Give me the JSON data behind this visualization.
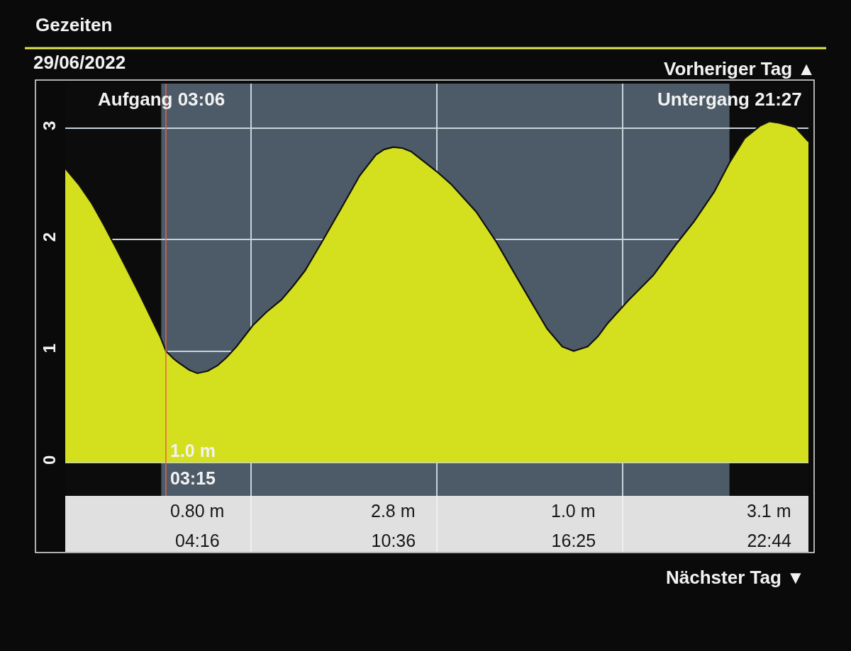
{
  "chart_data": {
    "type": "area",
    "title": "Gezeiten",
    "subtitle": "29/06/2022",
    "x": [
      0,
      0.45,
      0.87,
      1.25,
      1.63,
      2.0,
      2.4,
      2.75,
      3.08,
      3.25,
      3.5,
      3.69,
      4.0,
      4.267,
      4.6,
      4.92,
      5.2,
      5.53,
      6.06,
      6.5,
      6.98,
      7.35,
      7.74,
      8.27,
      8.89,
      9.5,
      10.03,
      10.3,
      10.6,
      10.9,
      11.17,
      11.63,
      12.0,
      12.45,
      13.27,
      13.92,
      14.5,
      15.07,
      15.56,
      16.05,
      16.417,
      16.87,
      17.2,
      17.52,
      18.17,
      18.99,
      19.73,
      20.3,
      20.96,
      21.45,
      21.94,
      22.43,
      22.733,
      23.0,
      23.57,
      24.0
    ],
    "series": [
      {
        "color": "#d4df1e",
        "values": [
          2.64,
          2.49,
          2.32,
          2.13,
          1.93,
          1.73,
          1.51,
          1.31,
          1.12,
          1.0,
          0.93,
          0.89,
          0.83,
          0.8,
          0.82,
          0.87,
          0.94,
          1.04,
          1.23,
          1.35,
          1.46,
          1.58,
          1.72,
          1.97,
          2.27,
          2.57,
          2.76,
          2.81,
          2.83,
          2.82,
          2.79,
          2.69,
          2.61,
          2.5,
          2.25,
          1.98,
          1.7,
          1.43,
          1.2,
          1.04,
          1.0,
          1.04,
          1.13,
          1.25,
          1.45,
          1.68,
          1.96,
          2.16,
          2.43,
          2.69,
          2.91,
          3.02,
          3.06,
          3.05,
          3.01,
          2.88
        ]
      }
    ],
    "xlim": [
      0,
      24
    ],
    "xticks": [
      {
        "value": 4.267,
        "label": "04:16"
      },
      {
        "value": 6,
        "label": null
      },
      {
        "value": 10.6,
        "label": "10:36"
      },
      {
        "value": 12,
        "label": null
      },
      {
        "value": 16.417,
        "label": "16:25"
      },
      {
        "value": 18,
        "label": null
      },
      {
        "value": 22.733,
        "label": "22:44"
      }
    ],
    "ylim": [
      -0.3,
      3.4
    ],
    "yticks": [
      0,
      1,
      2,
      3
    ],
    "grid": true,
    "bands": [
      {
        "axis": "x",
        "from": 0,
        "to": 3.1,
        "label": "Aufgang 03:06",
        "color": "#0c0c0c"
      },
      {
        "axis": "x",
        "from": 21.45,
        "to": 24,
        "label": "Untergang 21:27",
        "color": "#0c0c0c"
      }
    ],
    "ref_lines": [
      {
        "axis": "x",
        "value": 3.25,
        "label": "1.0 m\n03:15",
        "color": "#e8604c"
      }
    ],
    "annotations": [
      "0.80 m",
      "2.8 m",
      "1.0 m",
      "3.1 m",
      "Vorheriger Tag ▲",
      "Nächster Tag ▼"
    ]
  }
}
